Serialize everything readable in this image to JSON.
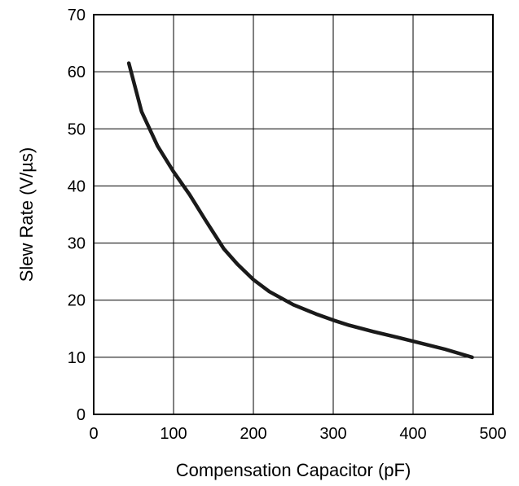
{
  "chart_data": {
    "type": "line",
    "title": "",
    "xlabel": "Compensation Capacitor (pF)",
    "ylabel": "Slew Rate (V/µs)",
    "xlim": [
      0,
      500
    ],
    "ylim": [
      0,
      70
    ],
    "xticks": [
      0,
      100,
      200,
      300,
      400,
      500
    ],
    "yticks": [
      0,
      10,
      20,
      30,
      40,
      50,
      60,
      70
    ],
    "grid": true,
    "legend": "none",
    "series": [
      {
        "color": "#1a1a1a",
        "x": [
          44,
          60,
          80,
          100,
          120,
          140,
          163,
          180,
          200,
          220,
          250,
          280,
          300,
          320,
          350,
          380,
          400,
          440,
          474
        ],
        "y": [
          61.5,
          53,
          47,
          42.5,
          38.5,
          34,
          29,
          26.3,
          23.6,
          21.5,
          19.2,
          17.5,
          16.5,
          15.6,
          14.5,
          13.5,
          12.8,
          11.4,
          10
        ]
      }
    ]
  }
}
